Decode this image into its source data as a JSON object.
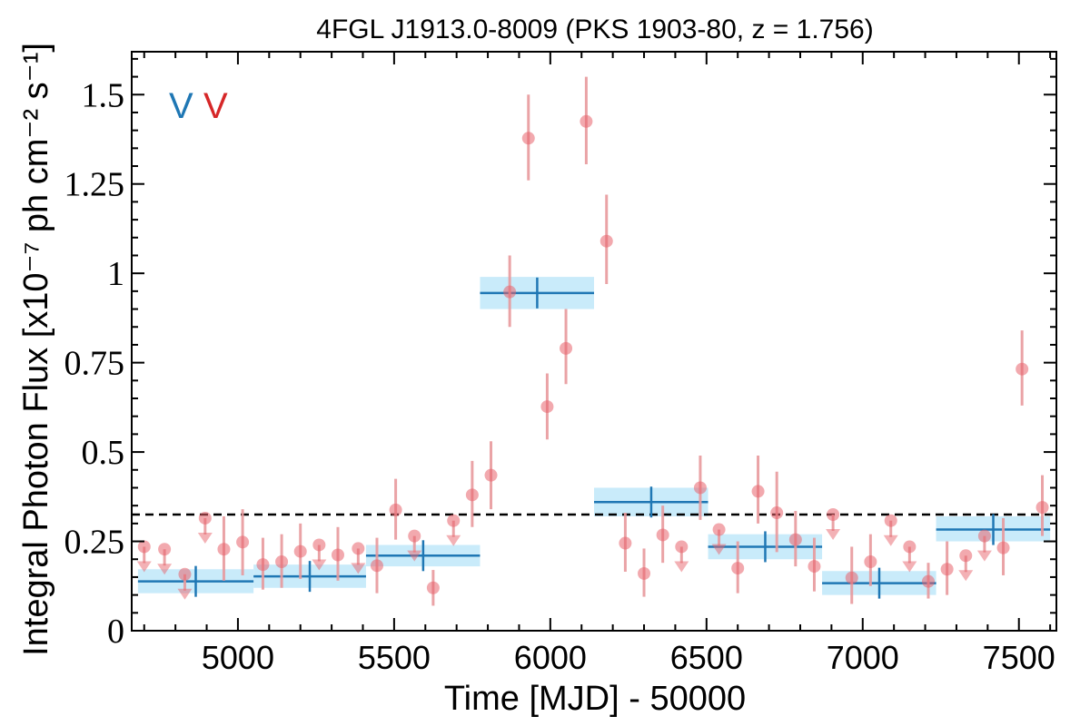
{
  "chart_data": {
    "type": "scatter",
    "title": "4FGL J1913.0-8009 (PKS 1903-80, z = 1.756)",
    "xlabel": "Time [MJD] - 50000",
    "ylabel": "Integral Photon Flux [x10⁻⁷ ph cm⁻² s⁻¹]",
    "xlim": [
      4660,
      7620
    ],
    "ylim": [
      0,
      1.62
    ],
    "xticks": [
      5000,
      5500,
      6000,
      6500,
      7000,
      7500
    ],
    "yticks": [
      0,
      0.25,
      0.5,
      0.75,
      1,
      1.25,
      1.5
    ],
    "ytick_labels": [
      "0",
      "0.25",
      "0.5",
      "0.75",
      "1",
      "1.25",
      "1.5"
    ],
    "reference_line": {
      "y": 0.325,
      "style": "dashed",
      "color": "#000000"
    },
    "legend": {
      "placement": "top-left",
      "entries": [
        {
          "label": "V",
          "color": "#1f77b4"
        },
        {
          "label": "V",
          "color": "#d62728"
        }
      ]
    },
    "colors": {
      "block_line": "#1f77b4",
      "block_fill": "#c9ebfa",
      "points": "#e8636b",
      "errorbars": "#e89a9d"
    },
    "series": [
      {
        "kind": "bayesian_blocks",
        "color": "#1f77b4",
        "blocks": [
          {
            "x_start": 4680,
            "x_end": 5050,
            "x_center": 4865,
            "y": 0.138,
            "y_low": 0.105,
            "y_high": 0.172
          },
          {
            "x_start": 5050,
            "x_end": 5410,
            "x_center": 5230,
            "y": 0.152,
            "y_low": 0.12,
            "y_high": 0.185
          },
          {
            "x_start": 5410,
            "x_end": 5775,
            "x_center": 5593,
            "y": 0.21,
            "y_low": 0.18,
            "y_high": 0.24
          },
          {
            "x_start": 5775,
            "x_end": 6140,
            "x_center": 5958,
            "y": 0.945,
            "y_low": 0.9,
            "y_high": 0.99
          },
          {
            "x_start": 6140,
            "x_end": 6505,
            "x_center": 6323,
            "y": 0.36,
            "y_low": 0.32,
            "y_high": 0.4
          },
          {
            "x_start": 6505,
            "x_end": 6870,
            "x_center": 6688,
            "y": 0.235,
            "y_low": 0.2,
            "y_high": 0.27
          },
          {
            "x_start": 6870,
            "x_end": 7235,
            "x_center": 7053,
            "y": 0.133,
            "y_low": 0.1,
            "y_high": 0.167
          },
          {
            "x_start": 7235,
            "x_end": 7600,
            "x_center": 7418,
            "y": 0.283,
            "y_low": 0.25,
            "y_high": 0.32
          }
        ]
      },
      {
        "kind": "light_curve",
        "color": "#e8636b",
        "points": [
          {
            "x": 4700,
            "y": 0.235,
            "upper_limit": true
          },
          {
            "x": 4765,
            "y": 0.228,
            "upper_limit": true
          },
          {
            "x": 4830,
            "y": 0.158,
            "upper_limit": true
          },
          {
            "x": 4895,
            "y": 0.315,
            "upper_limit": true
          },
          {
            "x": 4955,
            "y": 0.228,
            "ylo": 0.14,
            "yhi": 0.32
          },
          {
            "x": 5015,
            "y": 0.248,
            "ylo": 0.155,
            "yhi": 0.34
          },
          {
            "x": 5080,
            "y": 0.185,
            "ylo": 0.115,
            "yhi": 0.26
          },
          {
            "x": 5140,
            "y": 0.193,
            "ylo": 0.12,
            "yhi": 0.27
          },
          {
            "x": 5200,
            "y": 0.222,
            "ylo": 0.145,
            "yhi": 0.3
          },
          {
            "x": 5260,
            "y": 0.24,
            "upper_limit": true
          },
          {
            "x": 5320,
            "y": 0.212,
            "ylo": 0.14,
            "yhi": 0.29
          },
          {
            "x": 5385,
            "y": 0.23,
            "upper_limit": true
          },
          {
            "x": 5445,
            "y": 0.182,
            "ylo": 0.105,
            "yhi": 0.26
          },
          {
            "x": 5505,
            "y": 0.338,
            "ylo": 0.255,
            "yhi": 0.425
          },
          {
            "x": 5565,
            "y": 0.265,
            "upper_limit": true
          },
          {
            "x": 5625,
            "y": 0.12,
            "ylo": 0.07,
            "yhi": 0.17
          },
          {
            "x": 5690,
            "y": 0.308,
            "upper_limit": true
          },
          {
            "x": 5750,
            "y": 0.38,
            "ylo": 0.29,
            "yhi": 0.475
          },
          {
            "x": 5810,
            "y": 0.435,
            "ylo": 0.34,
            "yhi": 0.53
          },
          {
            "x": 5870,
            "y": 0.948,
            "ylo": 0.85,
            "yhi": 1.05
          },
          {
            "x": 5930,
            "y": 1.378,
            "ylo": 1.26,
            "yhi": 1.5
          },
          {
            "x": 5990,
            "y": 0.627,
            "ylo": 0.535,
            "yhi": 0.72
          },
          {
            "x": 6050,
            "y": 0.79,
            "ylo": 0.69,
            "yhi": 0.9
          },
          {
            "x": 6115,
            "y": 1.425,
            "ylo": 1.305,
            "yhi": 1.55
          },
          {
            "x": 6180,
            "y": 1.09,
            "ylo": 0.97,
            "yhi": 1.22
          },
          {
            "x": 6240,
            "y": 0.245,
            "ylo": 0.165,
            "yhi": 0.33
          },
          {
            "x": 6300,
            "y": 0.16,
            "ylo": 0.095,
            "yhi": 0.23
          },
          {
            "x": 6360,
            "y": 0.268,
            "ylo": 0.19,
            "yhi": 0.35
          },
          {
            "x": 6420,
            "y": 0.235,
            "upper_limit": true
          },
          {
            "x": 6480,
            "y": 0.4,
            "ylo": 0.31,
            "yhi": 0.49
          },
          {
            "x": 6540,
            "y": 0.283,
            "upper_limit": true
          },
          {
            "x": 6600,
            "y": 0.175,
            "ylo": 0.105,
            "yhi": 0.25
          },
          {
            "x": 6665,
            "y": 0.39,
            "ylo": 0.3,
            "yhi": 0.49
          },
          {
            "x": 6725,
            "y": 0.33,
            "ylo": 0.22,
            "yhi": 0.445
          },
          {
            "x": 6785,
            "y": 0.255,
            "ylo": 0.18,
            "yhi": 0.335
          },
          {
            "x": 6845,
            "y": 0.18,
            "ylo": 0.11,
            "yhi": 0.26
          },
          {
            "x": 6905,
            "y": 0.325,
            "upper_limit": true
          },
          {
            "x": 6965,
            "y": 0.148,
            "ylo": 0.075,
            "yhi": 0.235
          },
          {
            "x": 7025,
            "y": 0.193,
            "ylo": 0.125,
            "yhi": 0.27
          },
          {
            "x": 7090,
            "y": 0.308,
            "upper_limit": true
          },
          {
            "x": 7150,
            "y": 0.235,
            "upper_limit": true
          },
          {
            "x": 7210,
            "y": 0.138,
            "ylo": 0.09,
            "yhi": 0.19
          },
          {
            "x": 7270,
            "y": 0.172,
            "ylo": 0.1,
            "yhi": 0.25
          },
          {
            "x": 7330,
            "y": 0.21,
            "upper_limit": true
          },
          {
            "x": 7390,
            "y": 0.265,
            "upper_limit": true
          },
          {
            "x": 7450,
            "y": 0.232,
            "ylo": 0.155,
            "yhi": 0.315
          },
          {
            "x": 7510,
            "y": 0.732,
            "ylo": 0.63,
            "yhi": 0.84
          },
          {
            "x": 7575,
            "y": 0.345,
            "ylo": 0.265,
            "yhi": 0.435
          }
        ]
      }
    ]
  }
}
